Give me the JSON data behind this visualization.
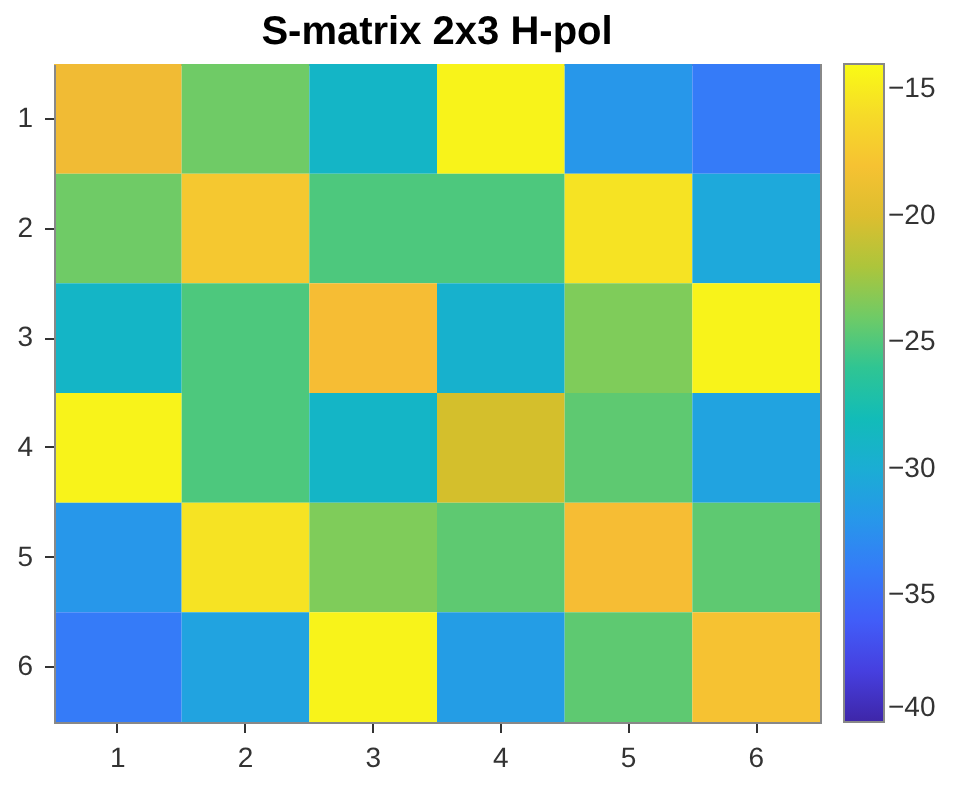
{
  "chart_data": {
    "type": "heatmap",
    "title": "S-matrix 2x3 H-pol",
    "categories": [
      "1",
      "2",
      "3",
      "4",
      "5",
      "6"
    ],
    "y_categories": [
      "1",
      "2",
      "3",
      "4",
      "5",
      "6"
    ],
    "cells": [
      [
        -19,
        -24,
        -29,
        -14.5,
        -32,
        -34
      ],
      [
        -24,
        -17.5,
        -25,
        -25,
        -15.5,
        -30.5
      ],
      [
        -29,
        -25,
        -18.5,
        -29.5,
        -23.5,
        -14.5
      ],
      [
        -14.5,
        -25,
        -29,
        -20.5,
        -24.5,
        -31
      ],
      [
        -32,
        -15.5,
        -23.5,
        -24.5,
        -18.5,
        -24.5
      ],
      [
        -34,
        -31,
        -14.5,
        -31.5,
        -24.5,
        -18
      ]
    ],
    "clim": [
      -40,
      -14
    ],
    "cticks": [
      -40,
      -35,
      -30,
      -25,
      -20,
      -15
    ]
  }
}
